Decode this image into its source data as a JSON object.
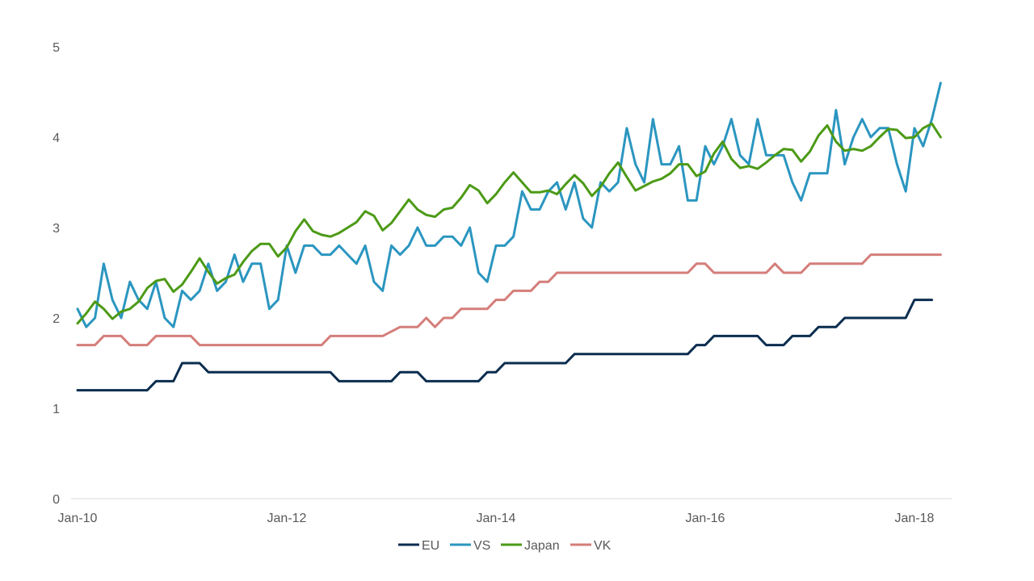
{
  "chart_data": {
    "type": "line",
    "title": "",
    "xlabel": "",
    "ylabel": "",
    "ylim": [
      0,
      5
    ],
    "yticks": [
      "0",
      "1",
      "2",
      "3",
      "4",
      "5"
    ],
    "xlim": [
      "2010-01",
      "2018-05"
    ],
    "xticks": [
      {
        "label": "Jan-10",
        "date": "2010-01"
      },
      {
        "label": "Jan-12",
        "date": "2012-01"
      },
      {
        "label": "Jan-14",
        "date": "2014-01"
      },
      {
        "label": "Jan-16",
        "date": "2016-01"
      },
      {
        "label": "Jan-18",
        "date": "2018-01"
      }
    ],
    "grid": false,
    "legend_position": "bottom",
    "series": [
      {
        "name": "EU",
        "color": "#0b2d4f",
        "points": [
          [
            "2010-01",
            1.2
          ],
          [
            "2010-09",
            1.2
          ],
          [
            "2010-10",
            1.3
          ],
          [
            "2010-12",
            1.3
          ],
          [
            "2011-01",
            1.5
          ],
          [
            "2011-03",
            1.5
          ],
          [
            "2011-04",
            1.4
          ],
          [
            "2012-06",
            1.4
          ],
          [
            "2012-07",
            1.3
          ],
          [
            "2013-01",
            1.3
          ],
          [
            "2013-02",
            1.4
          ],
          [
            "2013-04",
            1.4
          ],
          [
            "2013-05",
            1.3
          ],
          [
            "2013-11",
            1.3
          ],
          [
            "2013-12",
            1.4
          ],
          [
            "2014-01",
            1.4
          ],
          [
            "2014-02",
            1.5
          ],
          [
            "2014-09",
            1.5
          ],
          [
            "2014-10",
            1.6
          ],
          [
            "2015-11",
            1.6
          ],
          [
            "2015-12",
            1.7
          ],
          [
            "2016-01",
            1.7
          ],
          [
            "2016-02",
            1.8
          ],
          [
            "2016-07",
            1.8
          ],
          [
            "2016-08",
            1.7
          ],
          [
            "2016-10",
            1.7
          ],
          [
            "2016-11",
            1.8
          ],
          [
            "2017-01",
            1.8
          ],
          [
            "2017-02",
            1.9
          ],
          [
            "2017-04",
            1.9
          ],
          [
            "2017-05",
            2.0
          ],
          [
            "2017-12",
            2.0
          ],
          [
            "2018-01",
            2.2
          ],
          [
            "2018-03",
            2.2
          ]
        ]
      },
      {
        "name": "VS",
        "color": "#2b96c0",
        "points": [
          [
            "2010-01",
            2.1
          ],
          [
            "2010-02",
            1.9
          ],
          [
            "2010-03",
            2.0
          ],
          [
            "2010-04",
            2.6
          ],
          [
            "2010-05",
            2.2
          ],
          [
            "2010-06",
            2.0
          ],
          [
            "2010-07",
            2.4
          ],
          [
            "2010-08",
            2.2
          ],
          [
            "2010-09",
            2.1
          ],
          [
            "2010-10",
            2.4
          ],
          [
            "2010-11",
            2.0
          ],
          [
            "2010-12",
            1.9
          ],
          [
            "2011-01",
            2.3
          ],
          [
            "2011-02",
            2.2
          ],
          [
            "2011-03",
            2.3
          ],
          [
            "2011-04",
            2.6
          ],
          [
            "2011-05",
            2.3
          ],
          [
            "2011-06",
            2.4
          ],
          [
            "2011-07",
            2.7
          ],
          [
            "2011-08",
            2.4
          ],
          [
            "2011-09",
            2.6
          ],
          [
            "2011-10",
            2.6
          ],
          [
            "2011-11",
            2.1
          ],
          [
            "2011-12",
            2.2
          ],
          [
            "2012-01",
            2.8
          ],
          [
            "2012-02",
            2.5
          ],
          [
            "2012-03",
            2.8
          ],
          [
            "2012-04",
            2.8
          ],
          [
            "2012-05",
            2.7
          ],
          [
            "2012-06",
            2.7
          ],
          [
            "2012-07",
            2.8
          ],
          [
            "2012-08",
            2.7
          ],
          [
            "2012-09",
            2.6
          ],
          [
            "2012-10",
            2.8
          ],
          [
            "2012-11",
            2.4
          ],
          [
            "2012-12",
            2.3
          ],
          [
            "2013-01",
            2.8
          ],
          [
            "2013-02",
            2.7
          ],
          [
            "2013-03",
            2.8
          ],
          [
            "2013-04",
            3.0
          ],
          [
            "2013-05",
            2.8
          ],
          [
            "2013-06",
            2.8
          ],
          [
            "2013-07",
            2.9
          ],
          [
            "2013-08",
            2.9
          ],
          [
            "2013-09",
            2.8
          ],
          [
            "2013-10",
            3.0
          ],
          [
            "2013-11",
            2.5
          ],
          [
            "2013-12",
            2.4
          ],
          [
            "2014-01",
            2.8
          ],
          [
            "2014-02",
            2.8
          ],
          [
            "2014-03",
            2.9
          ],
          [
            "2014-04",
            3.4
          ],
          [
            "2014-05",
            3.2
          ],
          [
            "2014-06",
            3.2
          ],
          [
            "2014-07",
            3.4
          ],
          [
            "2014-08",
            3.5
          ],
          [
            "2014-09",
            3.2
          ],
          [
            "2014-10",
            3.5
          ],
          [
            "2014-11",
            3.1
          ],
          [
            "2014-12",
            3.0
          ],
          [
            "2015-01",
            3.5
          ],
          [
            "2015-02",
            3.4
          ],
          [
            "2015-03",
            3.5
          ],
          [
            "2015-04",
            4.1
          ],
          [
            "2015-05",
            3.7
          ],
          [
            "2015-06",
            3.5
          ],
          [
            "2015-07",
            4.2
          ],
          [
            "2015-08",
            3.7
          ],
          [
            "2015-09",
            3.7
          ],
          [
            "2015-10",
            3.9
          ],
          [
            "2015-11",
            3.3
          ],
          [
            "2015-12",
            3.3
          ],
          [
            "2016-01",
            3.9
          ],
          [
            "2016-02",
            3.7
          ],
          [
            "2016-03",
            3.9
          ],
          [
            "2016-04",
            4.2
          ],
          [
            "2016-05",
            3.8
          ],
          [
            "2016-06",
            3.7
          ],
          [
            "2016-07",
            4.2
          ],
          [
            "2016-08",
            3.8
          ],
          [
            "2016-09",
            3.8
          ],
          [
            "2016-10",
            3.8
          ],
          [
            "2016-11",
            3.5
          ],
          [
            "2016-12",
            3.3
          ],
          [
            "2017-01",
            3.6
          ],
          [
            "2017-02",
            3.6
          ],
          [
            "2017-03",
            3.6
          ],
          [
            "2017-04",
            4.3
          ],
          [
            "2017-05",
            3.7
          ],
          [
            "2017-06",
            4.0
          ],
          [
            "2017-07",
            4.2
          ],
          [
            "2017-08",
            4.0
          ],
          [
            "2017-09",
            4.1
          ],
          [
            "2017-10",
            4.1
          ],
          [
            "2017-11",
            3.7
          ],
          [
            "2017-12",
            3.4
          ],
          [
            "2018-01",
            4.1
          ],
          [
            "2018-02",
            3.9
          ],
          [
            "2018-03",
            4.2
          ],
          [
            "2018-04",
            4.6
          ]
        ]
      },
      {
        "name": "Japan",
        "color": "#4c9a16",
        "points": [
          [
            "2010-01",
            1.94
          ],
          [
            "2010-02",
            2.05
          ],
          [
            "2010-03",
            2.18
          ],
          [
            "2010-04",
            2.1
          ],
          [
            "2010-05",
            1.99
          ],
          [
            "2010-06",
            2.07
          ],
          [
            "2010-07",
            2.1
          ],
          [
            "2010-08",
            2.18
          ],
          [
            "2010-09",
            2.33
          ],
          [
            "2010-10",
            2.41
          ],
          [
            "2010-11",
            2.43
          ],
          [
            "2010-12",
            2.29
          ],
          [
            "2011-01",
            2.37
          ],
          [
            "2011-02",
            2.51
          ],
          [
            "2011-03",
            2.66
          ],
          [
            "2011-04",
            2.51
          ],
          [
            "2011-05",
            2.38
          ],
          [
            "2011-06",
            2.44
          ],
          [
            "2011-07",
            2.48
          ],
          [
            "2011-08",
            2.62
          ],
          [
            "2011-09",
            2.74
          ],
          [
            "2011-10",
            2.82
          ],
          [
            "2011-11",
            2.82
          ],
          [
            "2011-12",
            2.68
          ],
          [
            "2012-01",
            2.78
          ],
          [
            "2012-02",
            2.96
          ],
          [
            "2012-03",
            3.09
          ],
          [
            "2012-04",
            2.96
          ],
          [
            "2012-05",
            2.92
          ],
          [
            "2012-06",
            2.9
          ],
          [
            "2012-07",
            2.94
          ],
          [
            "2012-08",
            3.0
          ],
          [
            "2012-09",
            3.06
          ],
          [
            "2012-10",
            3.18
          ],
          [
            "2012-11",
            3.13
          ],
          [
            "2012-12",
            2.97
          ],
          [
            "2013-01",
            3.05
          ],
          [
            "2013-02",
            3.18
          ],
          [
            "2013-03",
            3.31
          ],
          [
            "2013-04",
            3.2
          ],
          [
            "2013-05",
            3.14
          ],
          [
            "2013-06",
            3.12
          ],
          [
            "2013-07",
            3.2
          ],
          [
            "2013-08",
            3.22
          ],
          [
            "2013-09",
            3.33
          ],
          [
            "2013-10",
            3.47
          ],
          [
            "2013-11",
            3.41
          ],
          [
            "2013-12",
            3.27
          ],
          [
            "2014-01",
            3.37
          ],
          [
            "2014-02",
            3.5
          ],
          [
            "2014-03",
            3.61
          ],
          [
            "2014-04",
            3.5
          ],
          [
            "2014-05",
            3.39
          ],
          [
            "2014-06",
            3.39
          ],
          [
            "2014-07",
            3.41
          ],
          [
            "2014-08",
            3.37
          ],
          [
            "2014-09",
            3.48
          ],
          [
            "2014-10",
            3.58
          ],
          [
            "2014-11",
            3.49
          ],
          [
            "2014-12",
            3.35
          ],
          [
            "2015-01",
            3.45
          ],
          [
            "2015-02",
            3.6
          ],
          [
            "2015-03",
            3.72
          ],
          [
            "2015-04",
            3.56
          ],
          [
            "2015-05",
            3.41
          ],
          [
            "2015-06",
            3.46
          ],
          [
            "2015-07",
            3.51
          ],
          [
            "2015-08",
            3.54
          ],
          [
            "2015-09",
            3.6
          ],
          [
            "2015-10",
            3.7
          ],
          [
            "2015-11",
            3.7
          ],
          [
            "2015-12",
            3.57
          ],
          [
            "2016-01",
            3.62
          ],
          [
            "2016-02",
            3.82
          ],
          [
            "2016-03",
            3.95
          ],
          [
            "2016-04",
            3.76
          ],
          [
            "2016-05",
            3.66
          ],
          [
            "2016-06",
            3.68
          ],
          [
            "2016-07",
            3.65
          ],
          [
            "2016-08",
            3.72
          ],
          [
            "2016-09",
            3.8
          ],
          [
            "2016-10",
            3.87
          ],
          [
            "2016-11",
            3.86
          ],
          [
            "2016-12",
            3.73
          ],
          [
            "2017-01",
            3.84
          ],
          [
            "2017-02",
            4.02
          ],
          [
            "2017-03",
            4.13
          ],
          [
            "2017-04",
            3.95
          ],
          [
            "2017-05",
            3.85
          ],
          [
            "2017-06",
            3.87
          ],
          [
            "2017-07",
            3.85
          ],
          [
            "2017-08",
            3.9
          ],
          [
            "2017-09",
            4.0
          ],
          [
            "2017-10",
            4.09
          ],
          [
            "2017-11",
            4.08
          ],
          [
            "2017-12",
            3.99
          ],
          [
            "2018-01",
            4.0
          ],
          [
            "2018-02",
            4.1
          ],
          [
            "2018-03",
            4.15
          ],
          [
            "2018-04",
            4.0
          ]
        ]
      },
      {
        "name": "VK",
        "color": "#d47e7a",
        "points": [
          [
            "2010-01",
            1.7
          ],
          [
            "2010-03",
            1.7
          ],
          [
            "2010-04",
            1.8
          ],
          [
            "2010-06",
            1.8
          ],
          [
            "2010-07",
            1.7
          ],
          [
            "2010-09",
            1.7
          ],
          [
            "2010-10",
            1.8
          ],
          [
            "2011-02",
            1.8
          ],
          [
            "2011-03",
            1.7
          ],
          [
            "2012-05",
            1.7
          ],
          [
            "2012-06",
            1.8
          ],
          [
            "2012-12",
            1.8
          ],
          [
            "2013-02",
            1.9
          ],
          [
            "2013-04",
            1.9
          ],
          [
            "2013-05",
            2.0
          ],
          [
            "2013-06",
            1.9
          ],
          [
            "2013-07",
            2.0
          ],
          [
            "2013-08",
            2.0
          ],
          [
            "2013-09",
            2.1
          ],
          [
            "2013-12",
            2.1
          ],
          [
            "2014-01",
            2.2
          ],
          [
            "2014-02",
            2.2
          ],
          [
            "2014-03",
            2.3
          ],
          [
            "2014-05",
            2.3
          ],
          [
            "2014-06",
            2.4
          ],
          [
            "2014-07",
            2.4
          ],
          [
            "2014-08",
            2.5
          ],
          [
            "2015-11",
            2.5
          ],
          [
            "2015-12",
            2.6
          ],
          [
            "2016-01",
            2.6
          ],
          [
            "2016-02",
            2.5
          ],
          [
            "2016-08",
            2.5
          ],
          [
            "2016-09",
            2.6
          ],
          [
            "2016-10",
            2.5
          ],
          [
            "2016-12",
            2.5
          ],
          [
            "2017-01",
            2.6
          ],
          [
            "2017-07",
            2.6
          ],
          [
            "2017-08",
            2.7
          ],
          [
            "2018-04",
            2.7
          ]
        ]
      }
    ]
  }
}
